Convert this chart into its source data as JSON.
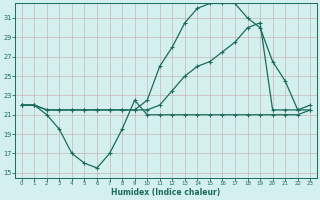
{
  "xlabel": "Humidex (Indice chaleur)",
  "bg_color": "#d4f0ee",
  "grid_color": "#c4a8a8",
  "line_color": "#1a6b5a",
  "xlim": [
    -0.5,
    23.5
  ],
  "ylim": [
    14.5,
    32.5
  ],
  "xticks": [
    0,
    1,
    2,
    3,
    4,
    5,
    6,
    7,
    8,
    9,
    10,
    11,
    12,
    13,
    14,
    15,
    16,
    17,
    18,
    19,
    20,
    21,
    22,
    23
  ],
  "yticks": [
    15,
    17,
    19,
    21,
    23,
    25,
    27,
    29,
    31
  ],
  "line1_x": [
    0,
    1,
    2,
    3,
    4,
    5,
    6,
    7,
    8,
    9,
    10,
    11,
    12,
    13,
    14,
    15,
    16,
    17,
    18,
    19,
    20,
    21,
    22,
    23
  ],
  "line1_y": [
    22.0,
    22.0,
    21.0,
    19.5,
    17.0,
    16.0,
    15.5,
    17.0,
    19.5,
    22.5,
    21.0,
    21.0,
    21.0,
    21.0,
    21.0,
    21.0,
    21.0,
    21.0,
    21.0,
    21.0,
    21.0,
    21.0,
    21.0,
    21.5
  ],
  "line2_x": [
    0,
    1,
    2,
    3,
    4,
    5,
    6,
    7,
    8,
    9,
    10,
    11,
    12,
    13,
    14,
    15,
    16,
    17,
    18,
    19,
    20,
    21,
    22,
    23
  ],
  "line2_y": [
    22.0,
    22.0,
    21.5,
    21.5,
    21.5,
    21.5,
    21.5,
    21.5,
    21.5,
    21.5,
    22.5,
    26.0,
    28.0,
    30.5,
    32.0,
    32.5,
    32.5,
    32.5,
    31.0,
    30.0,
    26.5,
    24.5,
    21.5,
    22.0
  ],
  "line3_x": [
    0,
    1,
    2,
    3,
    4,
    5,
    6,
    7,
    8,
    9,
    10,
    11,
    12,
    13,
    14,
    15,
    16,
    17,
    18,
    19,
    20,
    21,
    22,
    23
  ],
  "line3_y": [
    22.0,
    22.0,
    21.5,
    21.5,
    21.5,
    21.5,
    21.5,
    21.5,
    21.5,
    21.5,
    21.5,
    22.0,
    23.5,
    25.0,
    26.0,
    26.5,
    27.5,
    28.5,
    30.0,
    30.5,
    21.5,
    21.5,
    21.5,
    21.5
  ]
}
